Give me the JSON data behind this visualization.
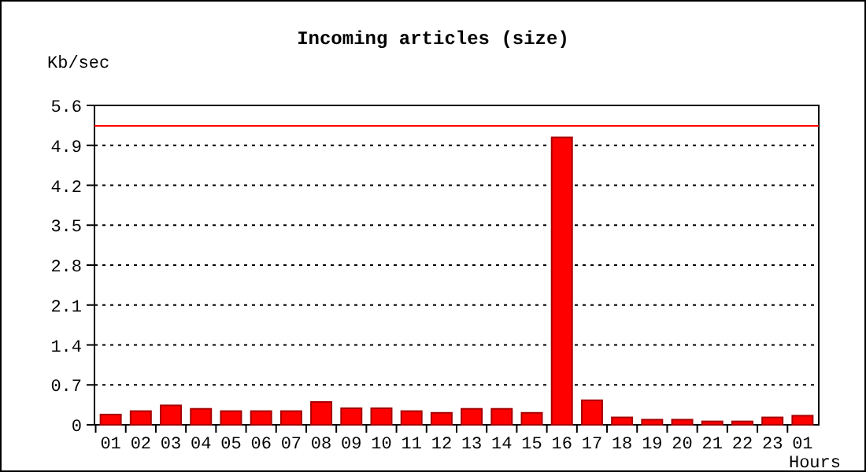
{
  "chart_data": {
    "type": "bar",
    "title": "Incoming articles (size)",
    "ylabel": "Kb/sec",
    "xlabel": "Hours",
    "categories": [
      "01",
      "02",
      "03",
      "04",
      "05",
      "06",
      "07",
      "08",
      "09",
      "10",
      "11",
      "12",
      "13",
      "14",
      "15",
      "16",
      "17",
      "18",
      "19",
      "20",
      "21",
      "22",
      "23",
      "01"
    ],
    "values": [
      0.18,
      0.24,
      0.34,
      0.28,
      0.24,
      0.24,
      0.24,
      0.4,
      0.29,
      0.29,
      0.24,
      0.21,
      0.28,
      0.28,
      0.21,
      5.04,
      0.43,
      0.13,
      0.09,
      0.09,
      0.06,
      0.06,
      0.13,
      0.16
    ],
    "color": "#ff0000",
    "ylim": [
      0,
      5.6
    ],
    "yticks": [
      0,
      0.7,
      1.4,
      2.1,
      2.8,
      3.5,
      4.2,
      4.9,
      5.6
    ],
    "grid": "y",
    "ref_lines": [
      {
        "axis": "y",
        "value": 5.24,
        "color": "#ff0000"
      }
    ]
  }
}
